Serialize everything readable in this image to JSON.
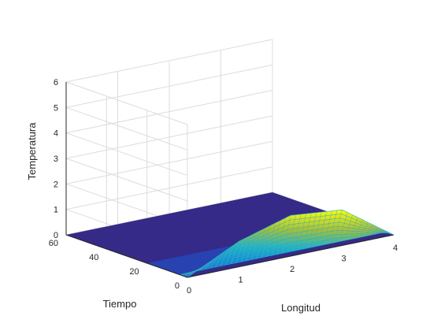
{
  "chart_data": {
    "type": "surface",
    "title": "",
    "xlabel": "Longitud",
    "ylabel": "Tiempo",
    "zlabel": "Temperatura",
    "x_ticks": [
      "0",
      "1",
      "2",
      "3",
      "4"
    ],
    "y_ticks": [
      "0",
      "20",
      "40",
      "60"
    ],
    "z_ticks": [
      "0",
      "1",
      "2",
      "3",
      "4",
      "5",
      "6"
    ],
    "xlim": [
      0,
      4
    ],
    "ylim": [
      0,
      60
    ],
    "zlim": [
      0,
      6
    ],
    "grid": true,
    "colormap": "parula",
    "colors": {
      "low": "#352a87",
      "mid": "#21b3c7",
      "high": "#f9fb0e",
      "grid": "#dcdcdc",
      "axis": "#262626"
    },
    "surface_points": [
      {
        "x": 0,
        "t": 0,
        "z": 0
      },
      {
        "x": 1,
        "t": 0,
        "z": 1.0
      },
      {
        "x": 2,
        "t": 0,
        "z": 1.6
      },
      {
        "x": 3,
        "t": 0,
        "z": 1.4
      },
      {
        "x": 4,
        "t": 0,
        "z": 0
      },
      {
        "x": 0,
        "t": 4,
        "z": 0
      },
      {
        "x": 2,
        "t": 4,
        "z": 0.6
      },
      {
        "x": 3,
        "t": 4,
        "z": 0.8
      },
      {
        "x": 4,
        "t": 4,
        "z": 0
      },
      {
        "x": 0,
        "t": 20,
        "z": 0
      },
      {
        "x": 4,
        "t": 20,
        "z": 0
      },
      {
        "x": 0,
        "t": 60,
        "z": 0
      },
      {
        "x": 4,
        "t": 60,
        "z": 0
      }
    ]
  }
}
